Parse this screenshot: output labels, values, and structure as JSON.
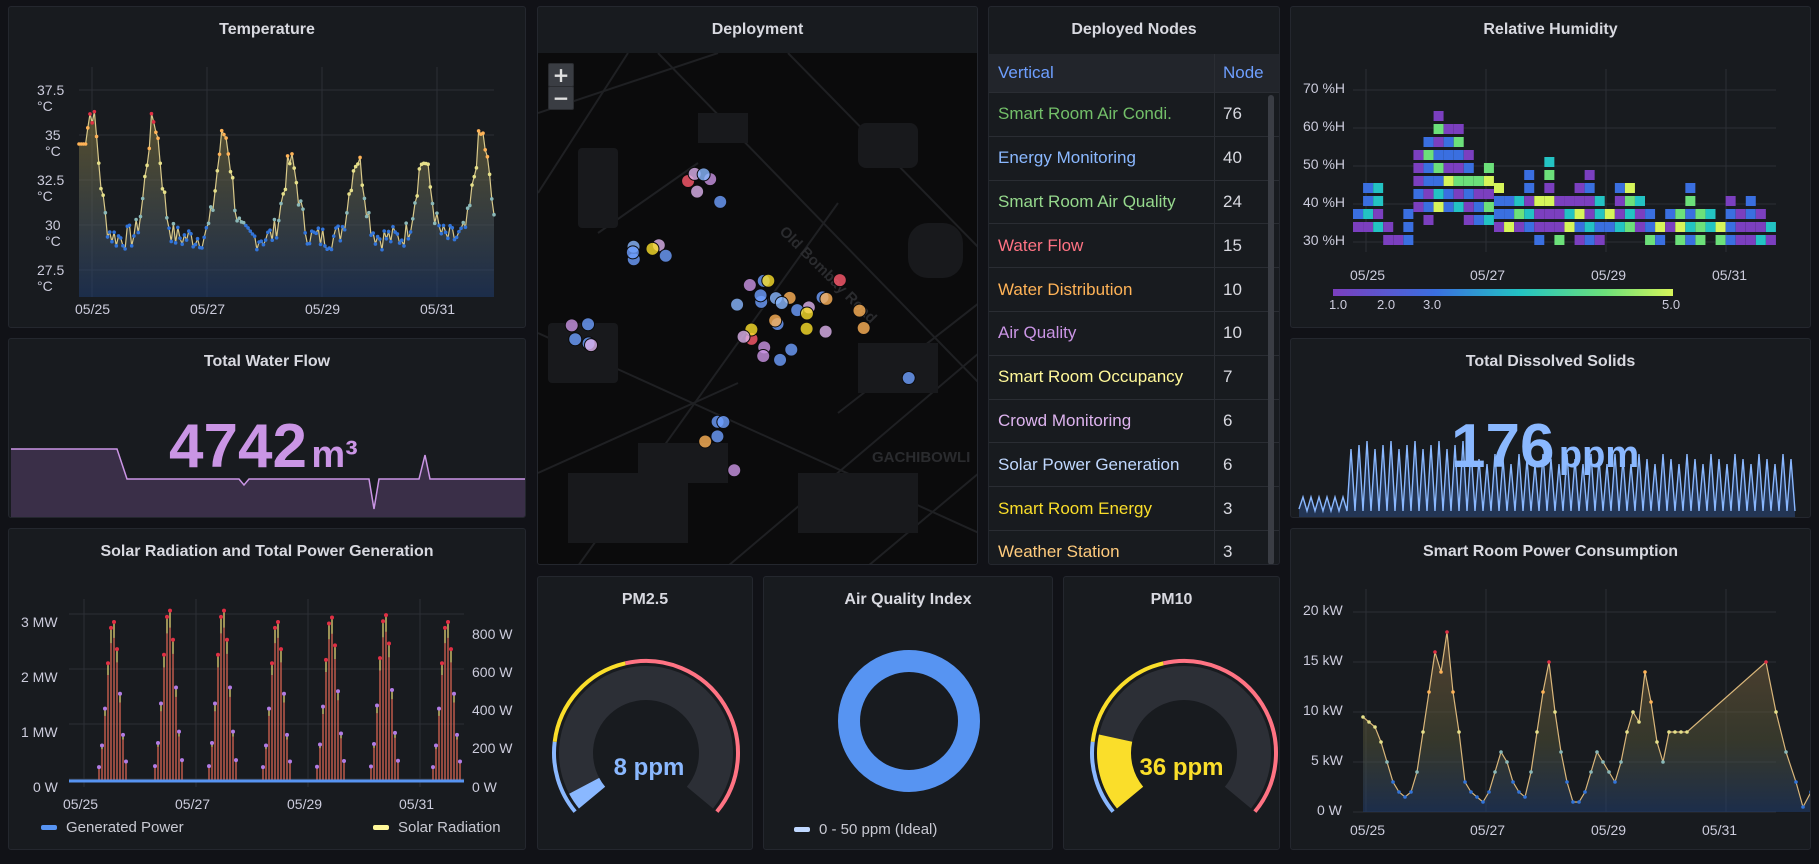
{
  "temperature": {
    "title": "Temperature",
    "y_ticks": [
      "37.5 °C",
      "35 °C",
      "32.5 °C",
      "30 °C",
      "27.5 °C"
    ],
    "x_ticks": [
      "05/25",
      "05/27",
      "05/29",
      "05/31"
    ]
  },
  "deployment": {
    "title": "Deployment",
    "zoom_in": "+",
    "zoom_out": "−",
    "road_label": "Old Bombay Road",
    "area_label": "GACHIBOWLI"
  },
  "nodes": {
    "title": "Deployed Nodes",
    "headers": [
      "Vertical",
      "Node"
    ],
    "rows": [
      {
        "vertical": "Smart Room Air Condi.",
        "node": "76",
        "color": "#73bf69"
      },
      {
        "vertical": "Energy Monitoring",
        "node": "40",
        "color": "#8ab8ff"
      },
      {
        "vertical": "Smart Room Air Quality",
        "node": "24",
        "color": "#96d98d"
      },
      {
        "vertical": "Water Flow",
        "node": "15",
        "color": "#ff7383"
      },
      {
        "vertical": "Water Distribution",
        "node": "10",
        "color": "#ffb357"
      },
      {
        "vertical": "Air Quality",
        "node": "10",
        "color": "#ca95e5"
      },
      {
        "vertical": "Smart Room Occupancy",
        "node": "7",
        "color": "#fff899"
      },
      {
        "vertical": "Crowd Monitoring",
        "node": "6",
        "color": "#ddb3ee"
      },
      {
        "vertical": "Solar Power Generation",
        "node": "6",
        "color": "#c0d8ff"
      },
      {
        "vertical": "Smart Room Energy",
        "node": "3",
        "color": "#fade2a"
      },
      {
        "vertical": "Weather Station",
        "node": "3",
        "color": "#ffcb7d"
      }
    ]
  },
  "humidity": {
    "title": "Relative Humidity",
    "y_ticks": [
      "70 %H",
      "60 %H",
      "50 %H",
      "40 %H",
      "30 %H"
    ],
    "x_ticks": [
      "05/25",
      "05/27",
      "05/29",
      "05/31"
    ],
    "scale_ticks": [
      "1.0",
      "2.0",
      "3.0",
      "5.0"
    ]
  },
  "water_flow": {
    "title": "Total Water Flow",
    "value": "4742",
    "unit": "m³",
    "color": "#ca95e5"
  },
  "tds": {
    "title": "Total Dissolved Solids",
    "value": "176",
    "unit": "ppm",
    "color": "#8ab8ff"
  },
  "solar": {
    "title": "Solar Radiation and Total Power Generation",
    "y_left_ticks": [
      "3 MW",
      "2 MW",
      "1 MW",
      "0 W"
    ],
    "y_right_ticks": [
      "800 W",
      "600 W",
      "400 W",
      "200 W",
      "0 W"
    ],
    "x_ticks": [
      "05/25",
      "05/27",
      "05/29",
      "05/31"
    ],
    "legend": [
      {
        "name": "Generated Power",
        "color": "#5794f2"
      },
      {
        "name": "Solar Radiation",
        "color": "#fff899"
      }
    ]
  },
  "pm25": {
    "title": "PM2.5",
    "value_text": "8 ppm",
    "value": 8,
    "color": "#8ab8ff"
  },
  "aqi": {
    "title": "Air Quality Index",
    "legend": "0 - 50 ppm (Ideal)",
    "color": "#5794f2"
  },
  "pm10": {
    "title": "PM10",
    "value_text": "36 ppm",
    "value": 36,
    "color": "#fade2a"
  },
  "power": {
    "title": "Smart Room Power Consumption",
    "y_ticks": [
      "20 kW",
      "15 kW",
      "10 kW",
      "5 kW",
      "0 W"
    ],
    "x_ticks": [
      "05/25",
      "05/27",
      "05/29",
      "05/31"
    ]
  }
}
